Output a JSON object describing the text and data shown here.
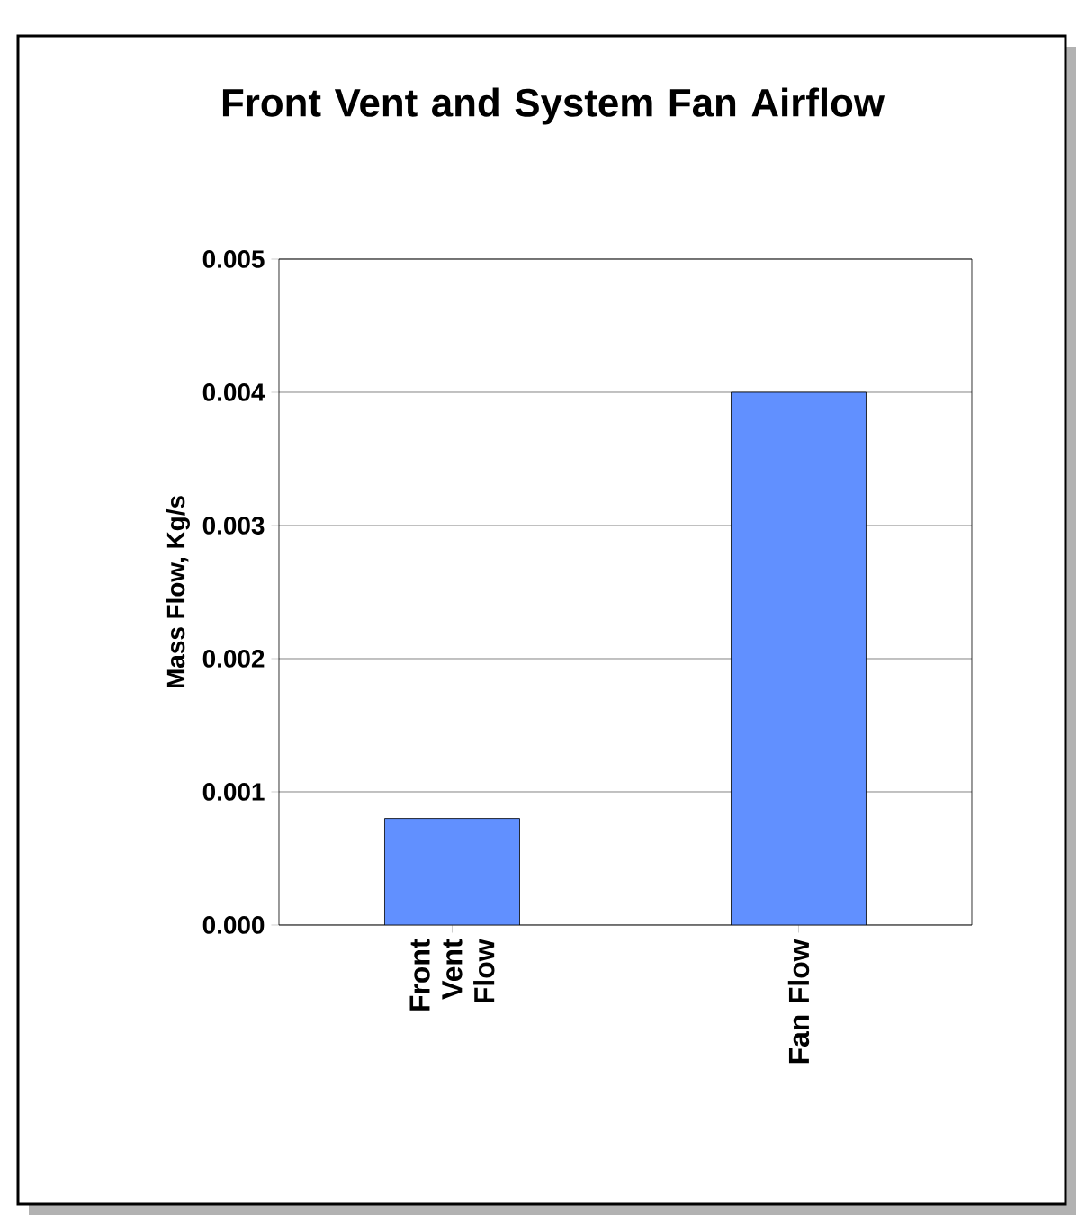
{
  "chart_data": {
    "type": "bar",
    "title": "Front Vent and System Fan Airflow",
    "ylabel": "Mass Flow, Kg/s",
    "categories": [
      "Front Vent Flow",
      "Fan Flow"
    ],
    "values": [
      0.0008,
      0.004
    ],
    "color": "#6190ff",
    "ylim": [
      0,
      0.005
    ],
    "yticks": [
      {
        "value": 0,
        "label": "0.000"
      },
      {
        "value": 0.001,
        "label": "0.001"
      },
      {
        "value": 0.002,
        "label": "0.002"
      },
      {
        "value": 0.003,
        "label": "0.003"
      },
      {
        "value": 0.004,
        "label": "0.004"
      },
      {
        "value": 0.005,
        "label": "0.005"
      }
    ],
    "grid": "y"
  }
}
